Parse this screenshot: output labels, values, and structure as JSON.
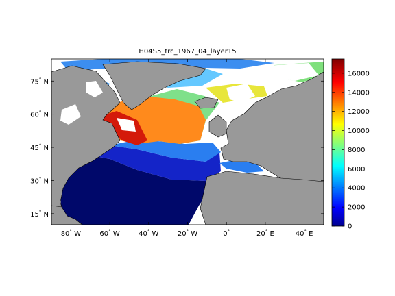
{
  "title": "H04S5_trc_1967_04_layer15",
  "map": {
    "lon_range": [
      -90,
      50
    ],
    "lat_range": [
      10,
      85
    ],
    "lon_ticks": [
      {
        "value": -80,
        "label": "80",
        "hemi": "W"
      },
      {
        "value": -60,
        "label": "60",
        "hemi": "W"
      },
      {
        "value": -40,
        "label": "40",
        "hemi": "W"
      },
      {
        "value": -20,
        "label": "20",
        "hemi": "W"
      },
      {
        "value": 0,
        "label": "0",
        "hemi": ""
      },
      {
        "value": 20,
        "label": "20",
        "hemi": "E"
      },
      {
        "value": 40,
        "label": "40",
        "hemi": "E"
      }
    ],
    "lat_ticks": [
      {
        "value": 15,
        "label": "15",
        "hemi": "N"
      },
      {
        "value": 30,
        "label": "30",
        "hemi": "N"
      },
      {
        "value": 45,
        "label": "45",
        "hemi": "N"
      },
      {
        "value": 60,
        "label": "60",
        "hemi": "N"
      },
      {
        "value": 75,
        "label": "75",
        "hemi": "N"
      }
    ],
    "land_color": "#999999",
    "nodata_color": "#ffffff"
  },
  "colorbar": {
    "min": 0,
    "max": 17500,
    "ticks": [
      0,
      2000,
      4000,
      6000,
      8000,
      10000,
      12000,
      14000,
      16000
    ],
    "colormap": "jet"
  }
}
